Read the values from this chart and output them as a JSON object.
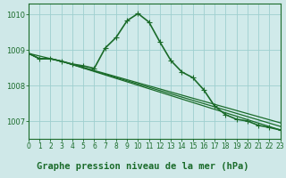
{
  "background_color": "#cfe8e8",
  "plot_bg_color": "#d0eaea",
  "grid_color": "#9ecfcf",
  "line_color": "#1a6b2a",
  "xlabel": "Graphe pression niveau de la mer (hPa)",
  "xlabel_fontsize": 7.5,
  "ylim": [
    1006.5,
    1010.3
  ],
  "xlim": [
    0,
    23
  ],
  "yticks": [
    1007,
    1008,
    1009,
    1010
  ],
  "xticks": [
    0,
    1,
    2,
    3,
    4,
    5,
    6,
    7,
    8,
    9,
    10,
    11,
    12,
    13,
    14,
    15,
    16,
    17,
    18,
    19,
    20,
    21,
    22,
    23
  ],
  "series": [
    {
      "x": [
        0,
        1,
        2,
        3,
        4,
        5,
        6,
        7,
        8,
        9,
        10,
        11,
        12,
        13,
        14,
        15,
        16,
        17,
        18,
        19,
        20,
        21,
        22,
        23
      ],
      "y": [
        1008.9,
        1008.75,
        1008.75,
        1008.68,
        1008.6,
        1008.55,
        1008.48,
        1009.05,
        1009.35,
        1009.82,
        1010.02,
        1009.78,
        1009.22,
        1008.7,
        1008.38,
        1008.22,
        1007.88,
        1007.42,
        1007.18,
        1007.05,
        1007.0,
        1006.88,
        1006.82,
        1006.75
      ],
      "linewidth": 1.2,
      "marker": "+",
      "markersize": 4
    },
    {
      "x": [
        0,
        1,
        2,
        3,
        23
      ],
      "y": [
        1008.9,
        1008.75,
        1008.75,
        1008.68,
        1006.75
      ],
      "linewidth": 0.9,
      "marker": null
    },
    {
      "x": [
        0,
        1,
        2,
        3,
        23
      ],
      "y": [
        1008.9,
        1008.75,
        1008.75,
        1008.68,
        1006.85
      ],
      "linewidth": 0.9,
      "marker": null
    },
    {
      "x": [
        0,
        3,
        23
      ],
      "y": [
        1008.9,
        1008.68,
        1006.95
      ],
      "linewidth": 0.9,
      "marker": null
    }
  ]
}
